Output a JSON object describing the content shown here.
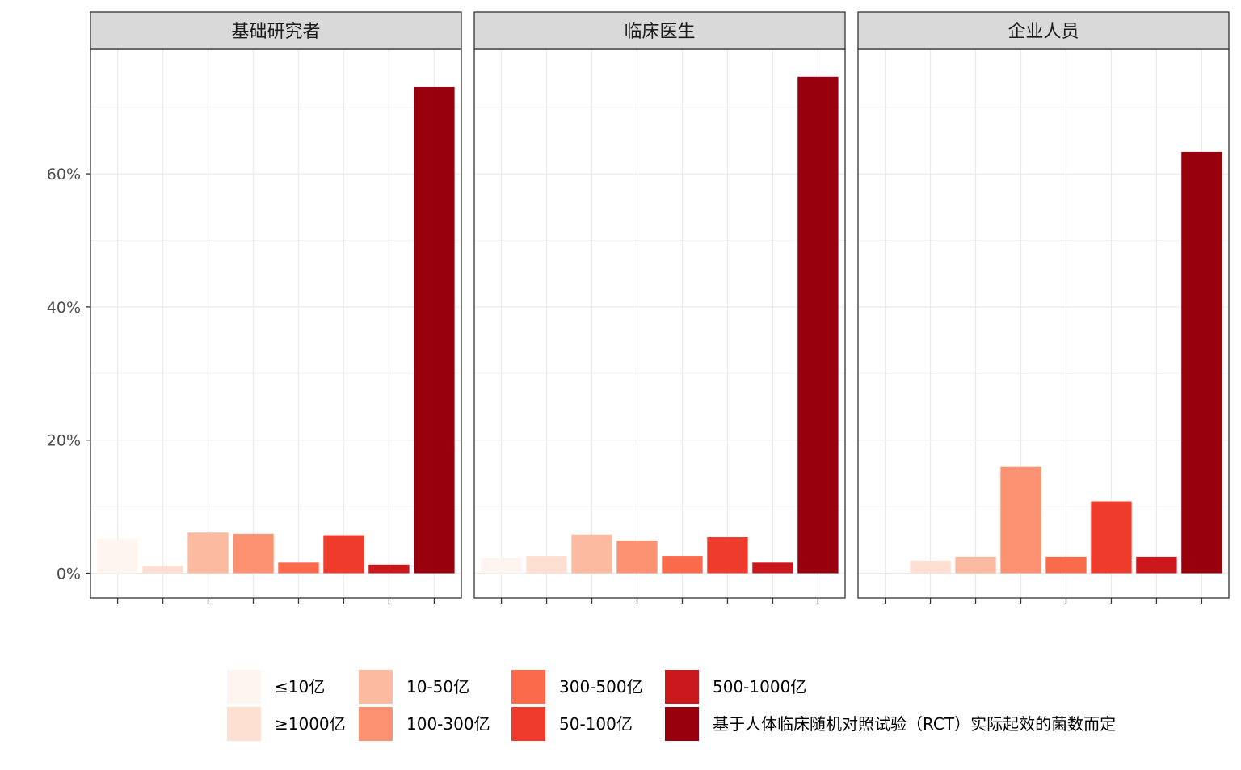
{
  "chart_data": {
    "type": "bar",
    "title": "",
    "xlabel": "",
    "ylabel": "",
    "ylim": [
      -0.037,
      0.787
    ],
    "yticks": [
      {
        "value": 0.0,
        "label": "0%"
      },
      {
        "value": 0.2,
        "label": "20%"
      },
      {
        "value": 0.4,
        "label": "40%"
      },
      {
        "value": 0.6,
        "label": "60%"
      }
    ],
    "grid": true,
    "legend_position": "bottom",
    "categories": [
      "≤10亿",
      "≥1000亿",
      "10-50亿",
      "100-300亿",
      "300-500亿",
      "50-100亿",
      "500-1000亿",
      "基于人体临床随机对照试验（RCT）实际起效的菌数而定"
    ],
    "colors": [
      "#FFF5F0",
      "#FEE0D2",
      "#FCBBA1",
      "#FC9272",
      "#FB6A4A",
      "#EF3B2C",
      "#CB181D",
      "#99000D"
    ],
    "facets": [
      {
        "name": "基础研究者",
        "values": [
          0.052,
          0.011,
          0.061,
          0.059,
          0.016,
          0.057,
          0.013,
          0.73
        ]
      },
      {
        "name": "临床医生",
        "values": [
          0.023,
          0.026,
          0.058,
          0.049,
          0.026,
          0.054,
          0.016,
          0.746
        ]
      },
      {
        "name": "企业人员",
        "values": [
          0.0,
          0.019,
          0.025,
          0.16,
          0.025,
          0.108,
          0.025,
          0.633
        ]
      }
    ]
  }
}
